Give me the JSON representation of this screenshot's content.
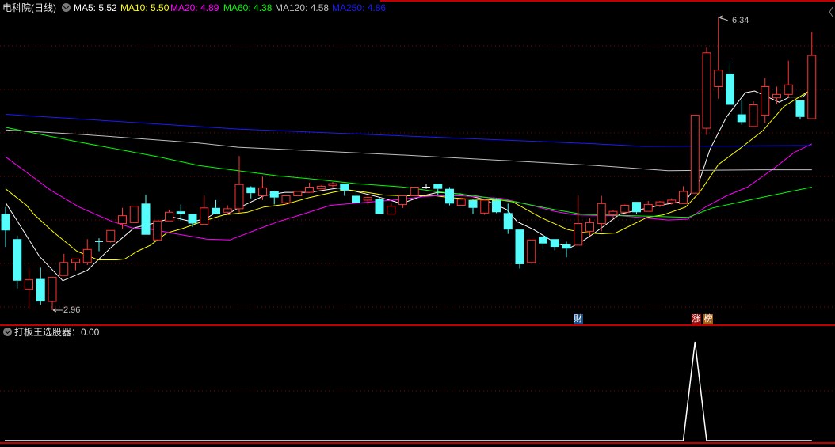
{
  "header": {
    "title": "电科院(日线)",
    "ma": [
      {
        "label": "MA5: 5.52",
        "color": "#ffffff"
      },
      {
        "label": "MA10: 5.50",
        "color": "#ffff00"
      },
      {
        "label": "MA20: 4.89",
        "color": "#ff00ff"
      },
      {
        "label": "MA60: 4.38",
        "color": "#00ff00"
      },
      {
        "label": "MA120: 4.58",
        "color": "#c0c0c0"
      },
      {
        "label": "MA250: 4.86",
        "color": "#1a1aff"
      }
    ]
  },
  "annotations": {
    "high": "6.34",
    "low": "2.96"
  },
  "badges": [
    {
      "text": "财",
      "bg": "#1c4f86",
      "index": 49
    },
    {
      "text": "涨",
      "bg": "#9b0b0b",
      "index": 59
    },
    {
      "text": "榜",
      "bg": "#a45a12",
      "index": 60
    }
  ],
  "indicator": {
    "label": "打板王选股器：0.00"
  },
  "chart_data": [
    {
      "type": "candlestick",
      "colors": {
        "up": "#ff3232",
        "down": "#54fcfc",
        "flat": "#ffffff"
      },
      "ohlc": [
        [
          4.07,
          4.15,
          3.69,
          3.88
        ],
        [
          3.78,
          3.82,
          3.21,
          3.3
        ],
        [
          3.2,
          3.45,
          2.98,
          3.31
        ],
        [
          3.32,
          3.45,
          3.02,
          3.06
        ],
        [
          3.06,
          3.34,
          2.96,
          3.34
        ],
        [
          3.36,
          3.61,
          3.36,
          3.51
        ],
        [
          3.51,
          3.55,
          3.42,
          3.55
        ],
        [
          3.51,
          3.78,
          3.48,
          3.66
        ],
        [
          3.75,
          3.79,
          3.64,
          3.75
        ],
        [
          3.75,
          3.88,
          3.74,
          3.88
        ],
        [
          3.96,
          4.14,
          3.9,
          4.05
        ],
        [
          3.97,
          4.16,
          3.97,
          4.16
        ],
        [
          4.19,
          4.29,
          3.83,
          3.83
        ],
        [
          3.77,
          3.99,
          3.77,
          3.99
        ],
        [
          3.99,
          4.12,
          3.99,
          4.09
        ],
        [
          4.1,
          4.18,
          3.99,
          4.07
        ],
        [
          4.07,
          4.07,
          3.92,
          3.96
        ],
        [
          3.95,
          4.28,
          3.95,
          4.14
        ],
        [
          4.14,
          4.23,
          4.07,
          4.07
        ],
        [
          4.09,
          4.17,
          4.06,
          4.13
        ],
        [
          4.13,
          4.74,
          4.08,
          4.41
        ],
        [
          4.38,
          4.39,
          4.25,
          4.31
        ],
        [
          4.28,
          4.5,
          4.23,
          4.37
        ],
        [
          4.33,
          4.34,
          4.18,
          4.26
        ],
        [
          4.2,
          4.28,
          4.18,
          4.28
        ],
        [
          4.28,
          4.33,
          4.28,
          4.33
        ],
        [
          4.32,
          4.43,
          4.32,
          4.38
        ],
        [
          4.36,
          4.4,
          4.36,
          4.39
        ],
        [
          4.4,
          4.44,
          4.38,
          4.42
        ],
        [
          4.42,
          4.42,
          4.28,
          4.34
        ],
        [
          4.28,
          4.33,
          4.2,
          4.2
        ],
        [
          4.23,
          4.27,
          4.18,
          4.26
        ],
        [
          4.24,
          4.26,
          4.07,
          4.07
        ],
        [
          4.07,
          4.19,
          4.07,
          4.16
        ],
        [
          4.18,
          4.28,
          4.14,
          4.28
        ],
        [
          4.28,
          4.38,
          4.28,
          4.38
        ],
        [
          4.38,
          4.42,
          4.36,
          4.38
        ],
        [
          4.42,
          4.42,
          4.29,
          4.36
        ],
        [
          4.36,
          4.38,
          4.17,
          4.19
        ],
        [
          4.17,
          4.26,
          4.17,
          4.24
        ],
        [
          4.23,
          4.24,
          4.07,
          4.14
        ],
        [
          4.08,
          4.24,
          4.06,
          4.23
        ],
        [
          4.23,
          4.25,
          4.08,
          4.09
        ],
        [
          4.08,
          4.19,
          3.84,
          3.89
        ],
        [
          3.89,
          3.89,
          3.44,
          3.49
        ],
        [
          3.51,
          3.77,
          3.51,
          3.77
        ],
        [
          3.81,
          3.81,
          3.67,
          3.73
        ],
        [
          3.78,
          3.78,
          3.65,
          3.69
        ],
        [
          3.72,
          3.75,
          3.57,
          3.67
        ],
        [
          3.71,
          4.28,
          3.71,
          3.96
        ],
        [
          3.87,
          4.02,
          3.82,
          3.97
        ],
        [
          3.96,
          4.28,
          3.87,
          4.19
        ],
        [
          4.06,
          4.12,
          4.03,
          4.1
        ],
        [
          4.09,
          4.18,
          4.09,
          4.17
        ],
        [
          4.21,
          4.21,
          4.07,
          4.09
        ],
        [
          4.1,
          4.22,
          4.1,
          4.18
        ],
        [
          4.17,
          4.22,
          4.15,
          4.21
        ],
        [
          4.2,
          4.25,
          4.18,
          4.23
        ],
        [
          4.19,
          4.39,
          4.19,
          4.33
        ],
        [
          4.31,
          5.21,
          4.31,
          5.21
        ],
        [
          5.06,
          5.99,
          4.98,
          5.93
        ],
        [
          5.54,
          6.34,
          5.4,
          5.73
        ],
        [
          5.69,
          5.83,
          5.33,
          5.33
        ],
        [
          5.22,
          5.38,
          5.1,
          5.13
        ],
        [
          5.08,
          5.37,
          5.07,
          5.33
        ],
        [
          5.21,
          5.64,
          5.12,
          5.54
        ],
        [
          5.41,
          5.54,
          5.34,
          5.45
        ],
        [
          5.45,
          5.84,
          5.41,
          5.56
        ],
        [
          5.38,
          5.38,
          5.16,
          5.19
        ],
        [
          5.17,
          6.17,
          5.17,
          5.9
        ]
      ],
      "moving_averages": [
        {
          "name": "MA5",
          "color": "#ffffff",
          "points": [
            [
              0,
              4.2
            ],
            [
              0.9,
              4.01
            ],
            [
              2.9,
              3.58
            ],
            [
              4.9,
              3.3
            ],
            [
              7,
              3.42
            ],
            [
              9,
              3.68
            ],
            [
              11,
              3.91
            ],
            [
              12.6,
              3.96
            ],
            [
              14.4,
              4.03
            ],
            [
              16,
              3.98
            ],
            [
              17.2,
              4.02
            ],
            [
              17.8,
              4.07
            ],
            [
              19,
              4.07
            ],
            [
              20.1,
              4.15
            ],
            [
              22.1,
              4.28
            ],
            [
              23.9,
              4.32
            ],
            [
              26,
              4.32
            ],
            [
              28.5,
              4.37
            ],
            [
              30,
              4.33
            ],
            [
              32.1,
              4.26
            ],
            [
              33.9,
              4.19
            ],
            [
              35.7,
              4.28
            ],
            [
              37,
              4.32
            ],
            [
              39,
              4.3
            ],
            [
              40.9,
              4.24
            ],
            [
              42.9,
              4.12
            ],
            [
              43.8,
              3.98
            ],
            [
              45.2,
              3.89
            ],
            [
              47,
              3.74
            ],
            [
              48.3,
              3.68
            ],
            [
              49.2,
              3.74
            ],
            [
              50.4,
              3.85
            ],
            [
              52.6,
              4.07
            ],
            [
              56,
              4.17
            ],
            [
              58.2,
              4.22
            ],
            [
              59.4,
              4.46
            ],
            [
              60.3,
              4.82
            ],
            [
              61.7,
              5.19
            ],
            [
              63.3,
              5.47
            ],
            [
              64.1,
              5.49
            ],
            [
              66.2,
              5.36
            ],
            [
              67.1,
              5.42
            ],
            [
              68.2,
              5.42
            ],
            [
              69,
              5.52
            ]
          ]
        },
        {
          "name": "MA10",
          "color": "#ffff00",
          "points": [
            [
              0,
              4.36
            ],
            [
              1.8,
              4.17
            ],
            [
              2.4,
              4.07
            ],
            [
              4.1,
              3.86
            ],
            [
              6.1,
              3.64
            ],
            [
              7.9,
              3.54
            ],
            [
              9.5,
              3.54
            ],
            [
              10.2,
              3.55
            ],
            [
              11.3,
              3.64
            ],
            [
              12.4,
              3.71
            ],
            [
              13.8,
              3.85
            ],
            [
              15.1,
              3.9
            ],
            [
              17.2,
              4.0
            ],
            [
              18.7,
              4.06
            ],
            [
              20.7,
              4.09
            ],
            [
              22.1,
              4.15
            ],
            [
              23.9,
              4.18
            ],
            [
              26,
              4.26
            ],
            [
              28,
              4.32
            ],
            [
              29.2,
              4.35
            ],
            [
              30.9,
              4.32
            ],
            [
              32.3,
              4.29
            ],
            [
              34.1,
              4.28
            ],
            [
              36.8,
              4.28
            ],
            [
              38,
              4.26
            ],
            [
              39.7,
              4.24
            ],
            [
              42.4,
              4.23
            ],
            [
              43.4,
              4.21
            ],
            [
              45.8,
              4.03
            ],
            [
              48.1,
              3.89
            ],
            [
              49.2,
              3.86
            ],
            [
              51,
              3.84
            ],
            [
              52.2,
              3.85
            ],
            [
              54.9,
              4.03
            ],
            [
              56.3,
              4.06
            ],
            [
              58.2,
              4.15
            ],
            [
              59.4,
              4.32
            ],
            [
              61,
              4.64
            ],
            [
              63.1,
              4.85
            ],
            [
              64.8,
              5.03
            ],
            [
              66.6,
              5.31
            ],
            [
              69,
              5.51
            ]
          ]
        },
        {
          "name": "MA20",
          "color": "#ff00ff",
          "points": [
            [
              0,
              4.73
            ],
            [
              2.9,
              4.44
            ],
            [
              3.8,
              4.35
            ],
            [
              6.3,
              4.15
            ],
            [
              9,
              3.99
            ],
            [
              10.8,
              3.91
            ],
            [
              12.2,
              3.9
            ],
            [
              14.2,
              3.85
            ],
            [
              17.2,
              3.78
            ],
            [
              19.2,
              3.77
            ],
            [
              21.7,
              3.9
            ],
            [
              23.3,
              3.98
            ],
            [
              25.5,
              4.07
            ],
            [
              27.8,
              4.17
            ],
            [
              29.6,
              4.19
            ],
            [
              30.5,
              4.2
            ],
            [
              32.3,
              4.22
            ],
            [
              34.1,
              4.24
            ],
            [
              35.7,
              4.27
            ],
            [
              36.8,
              4.28
            ],
            [
              39,
              4.28
            ],
            [
              42.4,
              4.25
            ],
            [
              44.7,
              4.18
            ],
            [
              47,
              4.1
            ],
            [
              48.8,
              4.06
            ],
            [
              51,
              4.05
            ],
            [
              52.6,
              4.05
            ],
            [
              56.7,
              4.0
            ],
            [
              58.4,
              4.01
            ],
            [
              59.9,
              4.15
            ],
            [
              61.7,
              4.28
            ],
            [
              63.5,
              4.38
            ],
            [
              65.8,
              4.6
            ],
            [
              67.5,
              4.78
            ],
            [
              69,
              4.88
            ]
          ]
        },
        {
          "name": "MA60",
          "color": "#00ff00",
          "points": [
            [
              0,
              5.07
            ],
            [
              6.3,
              4.9
            ],
            [
              13.1,
              4.73
            ],
            [
              16.5,
              4.63
            ],
            [
              19.9,
              4.57
            ],
            [
              23.3,
              4.51
            ],
            [
              26.6,
              4.47
            ],
            [
              30,
              4.42
            ],
            [
              34.1,
              4.38
            ],
            [
              36.8,
              4.33
            ],
            [
              40.2,
              4.28
            ],
            [
              43.6,
              4.21
            ],
            [
              47,
              4.12
            ],
            [
              49.2,
              4.07
            ],
            [
              51,
              4.06
            ],
            [
              58.4,
              4.03
            ],
            [
              60.5,
              4.14
            ],
            [
              64,
              4.24
            ],
            [
              69,
              4.38
            ]
          ]
        },
        {
          "name": "MA120",
          "color": "#c0c0c0",
          "points": [
            [
              0,
              5.04
            ],
            [
              6.3,
              4.99
            ],
            [
              16.5,
              4.89
            ],
            [
              19.9,
              4.84
            ],
            [
              24.6,
              4.81
            ],
            [
              34.1,
              4.75
            ],
            [
              50.4,
              4.63
            ],
            [
              56.7,
              4.57
            ],
            [
              64.7,
              4.58
            ],
            [
              69,
              4.58
            ]
          ]
        },
        {
          "name": "MA250",
          "color": "#1a1aff",
          "points": [
            [
              0,
              5.22
            ],
            [
              19.9,
              5.05
            ],
            [
              50.4,
              4.88
            ],
            [
              54.6,
              4.85
            ],
            [
              69,
              4.86
            ]
          ]
        }
      ]
    },
    {
      "type": "line",
      "name": "打板王选股器",
      "color": "#ffffff",
      "values": [
        0,
        0,
        0,
        0,
        0,
        0,
        0,
        0,
        0,
        0,
        0,
        0,
        0,
        0,
        0,
        0,
        0,
        0,
        0,
        0,
        0,
        0,
        0,
        0,
        0,
        0,
        0,
        0,
        0,
        0,
        0,
        0,
        0,
        0,
        0,
        0,
        0,
        0,
        0,
        0,
        0,
        0,
        0,
        0,
        0,
        0,
        0,
        0,
        0,
        0,
        0,
        0,
        0,
        0,
        0,
        0,
        0,
        0,
        0,
        1,
        0,
        0,
        0,
        0,
        0,
        0,
        0,
        0,
        0,
        0
      ],
      "ylim": [
        0,
        1
      ]
    }
  ]
}
